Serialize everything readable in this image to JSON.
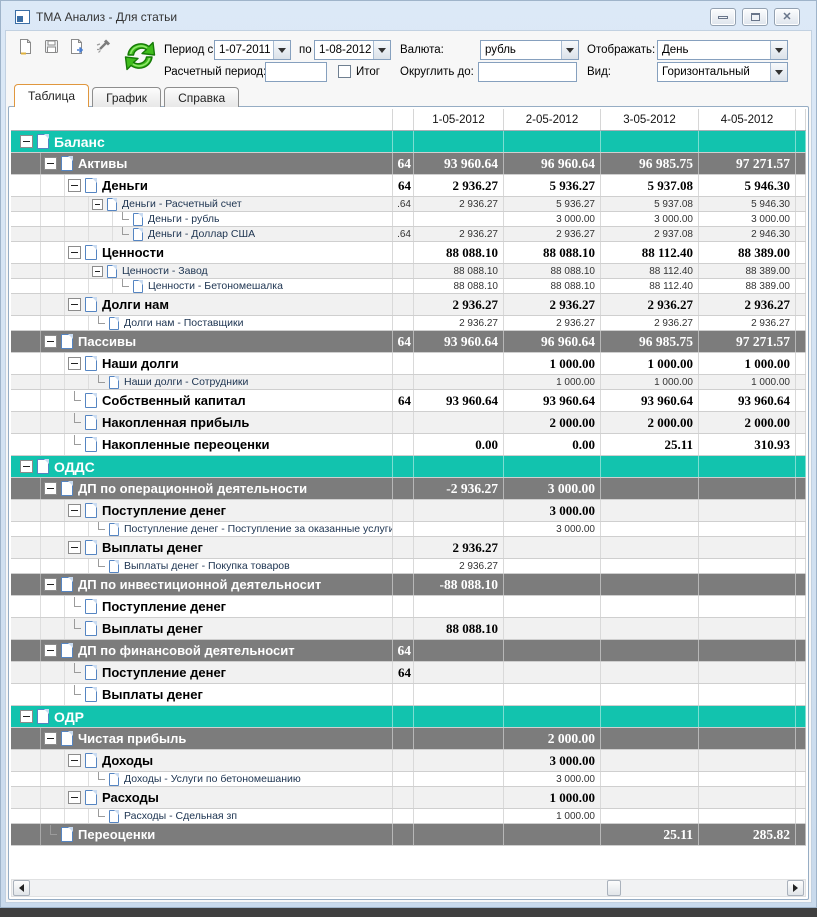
{
  "window": {
    "title": "ТМА Анализ - Для статьи"
  },
  "window_controls": {
    "minimize": "minimize",
    "maximize": "maximize",
    "close": "close"
  },
  "toolbar": {
    "icons": [
      "new-document-icon",
      "save-icon",
      "export-report-icon",
      "tools-icon",
      "refresh-icon"
    ],
    "period_label": "Период с:",
    "period_from": "1-07-2011",
    "to_label": "по",
    "period_to": "1-08-2012",
    "currency_label": "Валюта:",
    "currency_value": "рубль",
    "display_label": "Отображать:",
    "display_value": "День",
    "calc_period_label": "Расчетный период:",
    "calc_period_value": "",
    "total_label": "Итог",
    "total_checked": false,
    "round_label": "Округлить до:",
    "round_value": "",
    "view_label": "Вид:",
    "view_value": "Горизонтальный"
  },
  "tabs": [
    {
      "name": "tab-table",
      "label": "Таблица",
      "active": true
    },
    {
      "name": "tab-chart",
      "label": "График",
      "active": false
    },
    {
      "name": "tab-reference",
      "label": "Справка",
      "active": false
    }
  ],
  "colors": {
    "section_bg": "#12c3ae",
    "subsection_bg": "#7c7c7c",
    "alt_row_bg": "#f1f1f1",
    "active_tab_border": "#e0973e",
    "refresh_green": "#3fbc1c"
  },
  "grid": {
    "columns": [
      "",
      "1-05-2012",
      "2-05-2012",
      "3-05-2012",
      "4-05-2012",
      ""
    ],
    "rows": [
      {
        "label": "Баланс",
        "type": "sec",
        "level": 0,
        "node": "m",
        "values": [
          "",
          "",
          "",
          "",
          ""
        ]
      },
      {
        "label": "Активы",
        "type": "sub",
        "level": 1,
        "node": "m",
        "values": [
          "64",
          "93 960.64",
          "96 960.64",
          "96 985.75",
          "97 271.57"
        ]
      },
      {
        "label": "Деньги",
        "type": "bold",
        "level": 2,
        "node": "m",
        "values": [
          "64",
          "2 936.27",
          "5 936.27",
          "5 937.08",
          "5 946.30"
        ]
      },
      {
        "label": "Деньги - Расчетный счет",
        "type": "det",
        "level": 3,
        "node": "m",
        "values": [
          ".64",
          "2 936.27",
          "5 936.27",
          "5 937.08",
          "5 946.30"
        ]
      },
      {
        "label": "Деньги - рубль",
        "type": "det",
        "level": 4,
        "node": "l",
        "values": [
          "",
          "",
          "3 000.00",
          "3 000.00",
          "3 000.00"
        ]
      },
      {
        "label": "Деньги - Доллар США",
        "type": "det",
        "level": 4,
        "node": "l",
        "values": [
          ".64",
          "2 936.27",
          "2 936.27",
          "2 937.08",
          "2 946.30"
        ]
      },
      {
        "label": "Ценности",
        "type": "bold",
        "level": 2,
        "node": "m",
        "values": [
          "",
          "88 088.10",
          "88 088.10",
          "88 112.40",
          "88 389.00"
        ]
      },
      {
        "label": "Ценности - Завод",
        "type": "det",
        "level": 3,
        "node": "m",
        "values": [
          "",
          "88 088.10",
          "88 088.10",
          "88 112.40",
          "88 389.00"
        ]
      },
      {
        "label": "Ценности - Бетономешалка",
        "type": "det",
        "level": 4,
        "node": "l",
        "values": [
          "",
          "88 088.10",
          "88 088.10",
          "88 112.40",
          "88 389.00"
        ]
      },
      {
        "label": "Долги нам",
        "type": "bold",
        "level": 2,
        "node": "m",
        "values": [
          "",
          "2 936.27",
          "2 936.27",
          "2 936.27",
          "2 936.27"
        ]
      },
      {
        "label": "Долги нам - Поставщики",
        "type": "det",
        "level": 3,
        "node": "l",
        "values": [
          "",
          "2 936.27",
          "2 936.27",
          "2 936.27",
          "2 936.27"
        ]
      },
      {
        "label": "Пассивы",
        "type": "sub",
        "level": 1,
        "node": "m",
        "values": [
          "64",
          "93 960.64",
          "96 960.64",
          "96 985.75",
          "97 271.57"
        ]
      },
      {
        "label": "Наши долги",
        "type": "bold",
        "level": 2,
        "node": "m",
        "values": [
          "",
          "",
          "1 000.00",
          "1 000.00",
          "1 000.00"
        ]
      },
      {
        "label": "Наши долги - Сотрудники",
        "type": "det",
        "level": 3,
        "node": "l",
        "values": [
          "",
          "",
          "1 000.00",
          "1 000.00",
          "1 000.00"
        ]
      },
      {
        "label": "Собственный капитал",
        "type": "bold",
        "level": 2,
        "node": "l",
        "values": [
          "64",
          "93 960.64",
          "93 960.64",
          "93 960.64",
          "93 960.64"
        ]
      },
      {
        "label": "Накопленная прибыль",
        "type": "bold",
        "level": 2,
        "node": "l",
        "values": [
          "",
          "",
          "2 000.00",
          "2 000.00",
          "2 000.00"
        ]
      },
      {
        "label": "Накопленные переоценки",
        "type": "bold",
        "level": 2,
        "node": "l",
        "values": [
          "",
          "0.00",
          "0.00",
          "25.11",
          "310.93"
        ]
      },
      {
        "label": "ОДДС",
        "type": "sec",
        "level": 0,
        "node": "m",
        "values": [
          "",
          "",
          "",
          "",
          ""
        ]
      },
      {
        "label": "ДП по операционной деятельности",
        "type": "sub",
        "level": 1,
        "node": "m",
        "values": [
          "",
          "-2 936.27",
          "3 000.00",
          "",
          ""
        ]
      },
      {
        "label": "Поступление денег",
        "type": "bold",
        "level": 2,
        "node": "m",
        "values": [
          "",
          "",
          "3 000.00",
          "",
          ""
        ]
      },
      {
        "label": "Поступление денег - Поступление за оказанные услуги",
        "type": "det",
        "level": 3,
        "node": "l",
        "values": [
          "",
          "",
          "3 000.00",
          "",
          ""
        ]
      },
      {
        "label": "Выплаты денег",
        "type": "bold",
        "level": 2,
        "node": "m",
        "values": [
          "",
          "2 936.27",
          "",
          "",
          ""
        ]
      },
      {
        "label": "Выплаты денег - Покупка товаров",
        "type": "det",
        "level": 3,
        "node": "l",
        "values": [
          "",
          "2 936.27",
          "",
          "",
          ""
        ]
      },
      {
        "label": "ДП по инвестиционной деятельносит",
        "type": "sub",
        "level": 1,
        "node": "m",
        "values": [
          "",
          "-88 088.10",
          "",
          "",
          ""
        ]
      },
      {
        "label": "Поступление денег",
        "type": "bold",
        "level": 2,
        "node": "l",
        "values": [
          "",
          "",
          "",
          "",
          ""
        ]
      },
      {
        "label": "Выплаты денег",
        "type": "bold",
        "level": 2,
        "node": "l",
        "values": [
          "",
          "88 088.10",
          "",
          "",
          ""
        ]
      },
      {
        "label": "ДП по финансовой деятельносит",
        "type": "sub",
        "level": 1,
        "node": "m",
        "values": [
          "64",
          "",
          "",
          "",
          ""
        ]
      },
      {
        "label": "Поступление денег",
        "type": "bold",
        "level": 2,
        "node": "l",
        "values": [
          "64",
          "",
          "",
          "",
          ""
        ]
      },
      {
        "label": "Выплаты денег",
        "type": "bold",
        "level": 2,
        "node": "l",
        "values": [
          "",
          "",
          "",
          "",
          ""
        ]
      },
      {
        "label": "ОДР",
        "type": "sec",
        "level": 0,
        "node": "m",
        "values": [
          "",
          "",
          "",
          "",
          ""
        ]
      },
      {
        "label": "Чистая прибыль",
        "type": "sub",
        "level": 1,
        "node": "m",
        "values": [
          "",
          "",
          "2 000.00",
          "",
          ""
        ]
      },
      {
        "label": "Доходы",
        "type": "bold",
        "level": 2,
        "node": "m",
        "values": [
          "",
          "",
          "3 000.00",
          "",
          ""
        ]
      },
      {
        "label": "Доходы - Услуги по бетономешанию",
        "type": "det",
        "level": 3,
        "node": "l",
        "values": [
          "",
          "",
          "3 000.00",
          "",
          ""
        ]
      },
      {
        "label": "Расходы",
        "type": "bold",
        "level": 2,
        "node": "m",
        "values": [
          "",
          "",
          "1 000.00",
          "",
          ""
        ]
      },
      {
        "label": "Расходы - Сдельная зп",
        "type": "det",
        "level": 3,
        "node": "l",
        "values": [
          "",
          "",
          "1 000.00",
          "",
          ""
        ]
      },
      {
        "label": "Переоценки",
        "type": "sub",
        "level": 1,
        "node": "l",
        "values": [
          "",
          "",
          "",
          "25.11",
          "285.82"
        ]
      }
    ]
  }
}
